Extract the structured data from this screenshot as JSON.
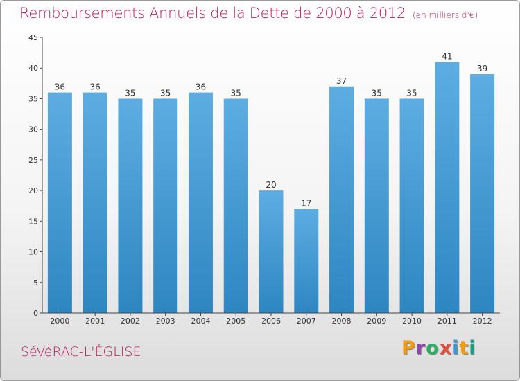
{
  "header": {
    "title": "Remboursements Annuels de la Dette de 2000 à 2012",
    "unit": "(en milliers d'€)"
  },
  "footer": {
    "commune": "SéVéRAC-L'ÉGLISE",
    "logo_text": "Proxiti",
    "logo_colors": [
      "#f39c12",
      "#8e44ad",
      "#27ae60",
      "#e74c3c",
      "#3498db",
      "#f39c12",
      "#16a085"
    ]
  },
  "colors": {
    "bar_light": "#5dade2",
    "bar_dark": "#2e86c1",
    "accent": "#c2185b"
  },
  "chart_data": {
    "type": "bar",
    "title": "Remboursements Annuels de la Dette de 2000 à 2012",
    "xlabel": "",
    "ylabel": "",
    "categories": [
      "2000",
      "2001",
      "2002",
      "2003",
      "2004",
      "2005",
      "2006",
      "2007",
      "2008",
      "2009",
      "2010",
      "2011",
      "2012"
    ],
    "values": [
      36,
      36,
      35,
      35,
      36,
      35,
      20,
      17,
      37,
      35,
      35,
      41,
      39
    ],
    "ylim": [
      0,
      45
    ],
    "yticks": [
      0,
      5,
      10,
      15,
      20,
      25,
      30,
      35,
      40,
      45
    ],
    "grid": false,
    "data_labels": true
  }
}
